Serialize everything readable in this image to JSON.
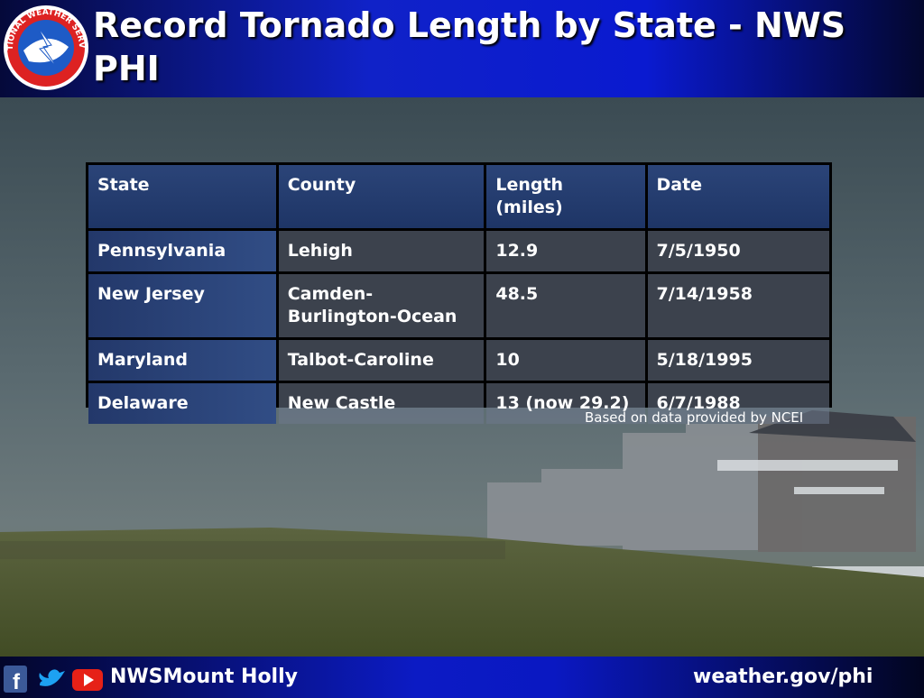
{
  "header": {
    "title": "Record Tornado Length by State - NWS PHI",
    "logo_text": "NATIONAL WEATHER SERVICE"
  },
  "table": {
    "columns": [
      "State",
      "County",
      "Length (miles)",
      "Date"
    ],
    "rows": [
      [
        "Pennsylvania",
        "Lehigh",
        "12.9",
        "7/5/1950"
      ],
      [
        "New Jersey",
        "Camden-Burlington-Ocean",
        "48.5",
        "7/14/1958"
      ],
      [
        "Maryland",
        "Talbot-Caroline",
        "10",
        "5/18/1995"
      ],
      [
        "Delaware",
        "New Castle",
        "13 (now 29.2)",
        "6/7/1988"
      ]
    ]
  },
  "note": "Based on data provided by NCEI",
  "footer": {
    "social": "NWSMount Holly",
    "url": "weather.gov/phi"
  }
}
